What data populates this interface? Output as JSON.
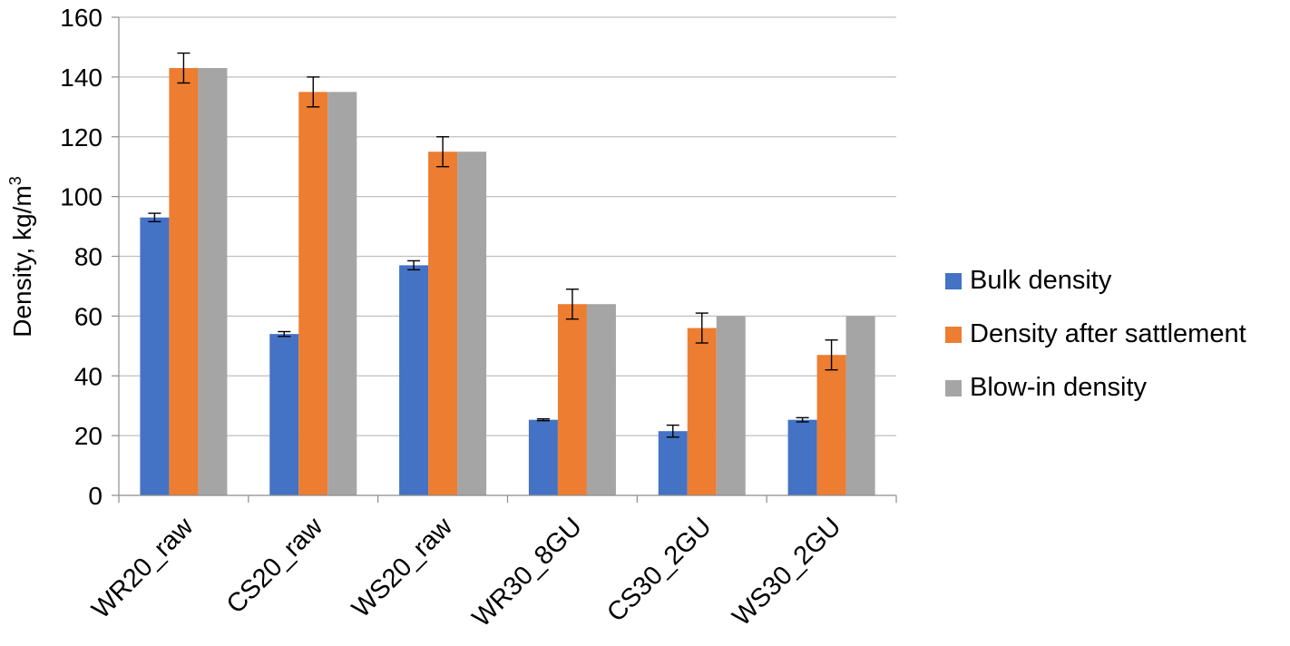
{
  "chart_data": {
    "type": "bar",
    "ylabel": "Density, kg/m",
    "ylabel_superscript": "3",
    "xlabel": "",
    "ylim": [
      0,
      160
    ],
    "ytick_step": 20,
    "yticks": [
      "0",
      "20",
      "40",
      "60",
      "80",
      "100",
      "120",
      "140",
      "160"
    ],
    "categories": [
      "WR20_raw",
      "CS20_raw",
      "WS20_raw",
      "WR30_8GU",
      "CS30_2GU",
      "WS30_2GU"
    ],
    "series": [
      {
        "name": "Bulk density",
        "color": "#4472c4",
        "values": [
          93,
          54,
          77,
          25.3,
          21.5,
          25.3
        ],
        "errors": [
          1.4,
          0.8,
          1.5,
          0.3,
          2.0,
          0.7
        ]
      },
      {
        "name": "Density after sattlement",
        "color": "#ed7d31",
        "values": [
          143,
          135,
          115,
          64,
          56,
          47
        ],
        "errors": [
          5,
          5,
          5,
          5,
          5,
          5
        ]
      },
      {
        "name": "Blow-in density",
        "color": "#a5a5a5",
        "values": [
          143,
          135,
          115,
          64,
          60,
          60
        ],
        "errors": null
      }
    ],
    "legend_position": "right",
    "grid": true
  }
}
